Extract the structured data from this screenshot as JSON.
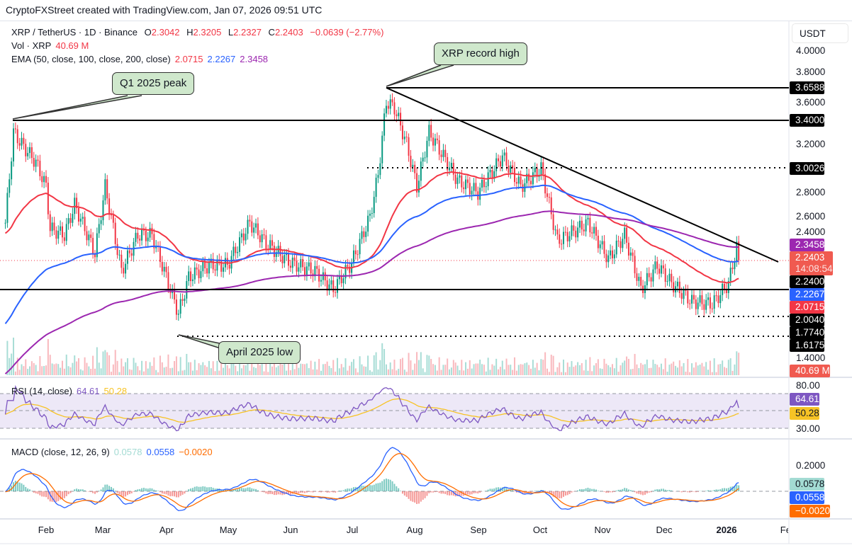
{
  "header": "CryptoFXStreet created with TradingView.com, Jan 07, 2026 09:51 UTC",
  "legend": {
    "symbol": "XRP / TetherUS · 1D · Binance",
    "o_label": "O",
    "o": "2.3042",
    "h_label": "H",
    "h": "2.3205",
    "l_label": "L",
    "l": "2.2327",
    "c_label": "C",
    "c": "2.2403",
    "change": "−0.0639 (−2.77%)",
    "vol_label": "Vol · XRP",
    "vol": "40.69 M",
    "ema_label": "EMA (50, close, 100, close, 200, close)",
    "ema50": "2.0715",
    "ema100": "2.2267",
    "ema200": "2.3458"
  },
  "rsi": {
    "label": "RSI (14, close)",
    "value": "64.61",
    "ma": "50.28",
    "ticks": [
      "80.00",
      "30.00"
    ]
  },
  "macd": {
    "label": "MACD (close, 12, 26, 9)",
    "hist": "0.0578",
    "macd": "0.0558",
    "signal": "−0.0020",
    "ticks": [
      "0.2000"
    ]
  },
  "axis": {
    "currency": "USDT",
    "price_ticks": [
      "4.0000",
      "3.8000",
      "3.6000",
      "3.2000",
      "2.8000",
      "2.6000",
      "2.4000",
      "1.4000"
    ],
    "months": [
      "Feb",
      "Mar",
      "Apr",
      "May",
      "Jun",
      "Jul",
      "Aug",
      "Sep",
      "Oct",
      "Nov",
      "Dec",
      "2026",
      "Feb"
    ],
    "labels": [
      {
        "text": "3.6588",
        "color": "#000000"
      },
      {
        "text": "3.4000",
        "color": "#000000"
      },
      {
        "text": "3.0026",
        "color": "#000000"
      },
      {
        "text": "2.3458",
        "color": "#9c27b0"
      },
      {
        "text": "2.2403",
        "sub": "14:08:54",
        "color": "#f05a50"
      },
      {
        "text": "2.2400",
        "color": "#000000"
      },
      {
        "text": "2.2267",
        "color": "#2962ff"
      },
      {
        "text": "2.0715",
        "color": "#f23645"
      },
      {
        "text": "2.0040",
        "color": "#000000"
      },
      {
        "text": "1.7740",
        "color": "#000000"
      },
      {
        "text": "1.6175",
        "color": "#000000"
      },
      {
        "text": "40.69 M",
        "color": "#f05a50"
      }
    ],
    "rsi_labels": [
      {
        "text": "64.61",
        "color": "#7e57c2"
      },
      {
        "text": "50.28",
        "color": "#f7c325"
      }
    ],
    "macd_labels": [
      {
        "text": "0.0578",
        "color": "#a3dbd3"
      },
      {
        "text": "0.0558",
        "color": "#2962ff"
      },
      {
        "text": "−0.0020",
        "color": "#ff6d00"
      }
    ]
  },
  "annotations": {
    "q1": "Q1 2025 peak",
    "record": "XRP record high",
    "april": "April 2025 low"
  },
  "colors": {
    "up": "#089981",
    "down": "#f23645",
    "ema50": "#f23645",
    "ema100": "#2962ff",
    "ema200": "#9c27b0",
    "rsi": "#7e57c2",
    "rsi_ma": "#f7c325",
    "macd": "#2962ff",
    "signal": "#ff6d00"
  },
  "chart_data": {
    "type": "candlestick",
    "title": "XRP / TetherUS · 1D · Binance",
    "ylabel": "USDT",
    "ylim": [
      1.4,
      4.0
    ],
    "levels": [
      3.6588,
      3.4,
      3.0026,
      2.24,
      2.004,
      1.774
    ],
    "close_keypoints": [
      [
        "2025-01-12",
        2.55
      ],
      [
        "2025-01-16",
        3.3
      ],
      [
        "2025-01-20",
        3.2
      ],
      [
        "2025-01-27",
        3.05
      ],
      [
        "2025-02-01",
        2.85
      ],
      [
        "2025-02-03",
        2.5
      ],
      [
        "2025-02-10",
        2.45
      ],
      [
        "2025-02-15",
        2.7
      ],
      [
        "2025-02-25",
        2.3
      ],
      [
        "2025-03-02",
        2.85
      ],
      [
        "2025-03-10",
        2.15
      ],
      [
        "2025-03-18",
        2.45
      ],
      [
        "2025-03-25",
        2.45
      ],
      [
        "2025-04-01",
        2.1
      ],
      [
        "2025-04-07",
        1.8
      ],
      [
        "2025-04-12",
        2.1
      ],
      [
        "2025-04-22",
        2.2
      ],
      [
        "2025-05-01",
        2.2
      ],
      [
        "2025-05-12",
        2.55
      ],
      [
        "2025-05-20",
        2.38
      ],
      [
        "2025-06-01",
        2.22
      ],
      [
        "2025-06-13",
        2.15
      ],
      [
        "2025-06-22",
        2.0
      ],
      [
        "2025-07-01",
        2.22
      ],
      [
        "2025-07-10",
        2.6
      ],
      [
        "2025-07-14",
        2.95
      ],
      [
        "2025-07-18",
        3.55
      ],
      [
        "2025-07-22",
        3.5
      ],
      [
        "2025-07-28",
        3.2
      ],
      [
        "2025-08-02",
        2.85
      ],
      [
        "2025-08-08",
        3.3
      ],
      [
        "2025-08-15",
        3.1
      ],
      [
        "2025-08-22",
        2.9
      ],
      [
        "2025-09-01",
        2.8
      ],
      [
        "2025-09-13",
        3.1
      ],
      [
        "2025-09-22",
        2.85
      ],
      [
        "2025-10-02",
        3.0
      ],
      [
        "2025-10-10",
        2.4
      ],
      [
        "2025-10-15",
        2.45
      ],
      [
        "2025-10-25",
        2.55
      ],
      [
        "2025-11-04",
        2.25
      ],
      [
        "2025-11-12",
        2.45
      ],
      [
        "2025-11-20",
        2.0
      ],
      [
        "2025-11-28",
        2.2
      ],
      [
        "2025-12-05",
        2.05
      ],
      [
        "2025-12-15",
        1.9
      ],
      [
        "2025-12-25",
        1.88
      ],
      [
        "2026-01-02",
        2.05
      ],
      [
        "2026-01-06",
        2.35
      ],
      [
        "2026-01-07",
        2.24
      ]
    ]
  }
}
